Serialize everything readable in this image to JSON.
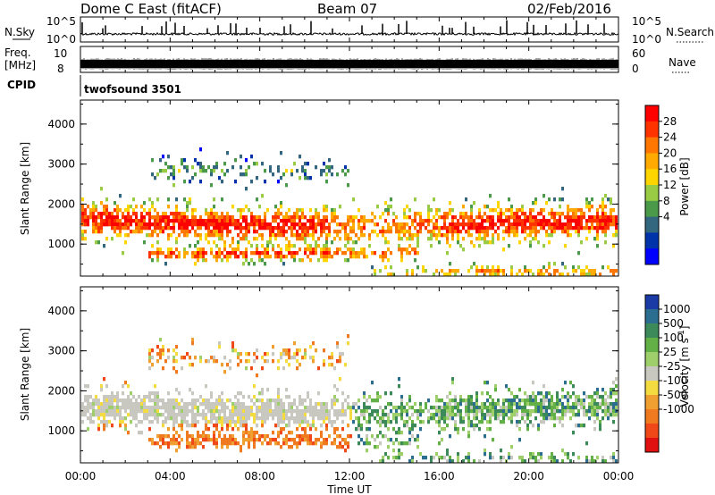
{
  "header": {
    "station": "Dome C East (fitACF)",
    "beam": "Beam 07",
    "date": "02/Feb/2016"
  },
  "top_panels": {
    "nsky_label": "N.Sky",
    "nsky_ticks": [
      "10^5",
      "10^0"
    ],
    "nsearch_label": "N.Search",
    "nsearch_ticks": [
      "10^5",
      "10^0"
    ],
    "freq_label_1": "Freq.",
    "freq_label_2": "[MHz]",
    "freq_ticks": [
      "10",
      "8"
    ],
    "nave_label": "Nave",
    "nave_ticks": [
      "60",
      "0"
    ],
    "cpid_label": "CPID",
    "cpid_value": "twofsound 3501"
  },
  "chart_data": [
    {
      "type": "heatmap",
      "name": "power-panel",
      "ylabel": "Slant Range [km]",
      "yticks": [
        "4000",
        "3000",
        "2000",
        "1000"
      ],
      "ylim": [
        200,
        4600
      ],
      "colorbar_label": "Power [dB]",
      "colorbar_ticks": [
        "28",
        "24",
        "20",
        "16",
        "12",
        "8",
        "4"
      ],
      "colorbar_colors": [
        "#ff0000",
        "#ff3300",
        "#ff7700",
        "#ffaa00",
        "#ffd500",
        "#99cc44",
        "#4a9a4a",
        "#33667f",
        "#0033aa",
        "#0000ff"
      ],
      "xlim": [
        0,
        24
      ]
    },
    {
      "type": "heatmap",
      "name": "velocity-panel",
      "ylabel": "Slant Range [km]",
      "yticks": [
        "4000",
        "3000",
        "2000",
        "1000"
      ],
      "ylim": [
        200,
        4600
      ],
      "colorbar_label": "Velocity [m s",
      "colorbar_label_sup": "-1",
      "colorbar_label_end": "]",
      "colorbar_ticks": [
        "1000",
        "500",
        "100",
        "25",
        "-25",
        "-100",
        "-500",
        "-1000"
      ],
      "colorbar_colors": [
        "#1a3aa6",
        "#2c6e8f",
        "#3c8a5a",
        "#62b046",
        "#9fcf6a",
        "#c8c8c0",
        "#f4dc40",
        "#f0a030",
        "#f07a20",
        "#f04818",
        "#e01010"
      ],
      "xlim": [
        0,
        24
      ]
    }
  ],
  "time_axis": {
    "ticks": [
      "00:00",
      "04:00",
      "08:00",
      "12:00",
      "16:00",
      "20:00",
      "00:00"
    ],
    "label": "Time UT"
  },
  "colors": {
    "frame": "#000000",
    "background": "#ffffff"
  }
}
